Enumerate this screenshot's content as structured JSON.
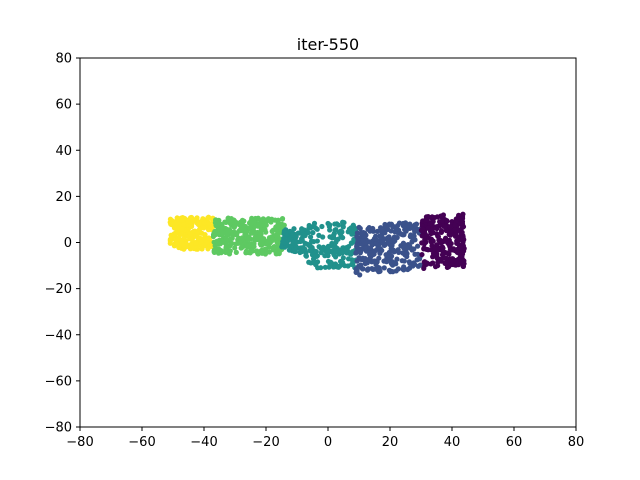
{
  "chart_data": {
    "type": "scatter",
    "title": "iter-550",
    "xlabel": "",
    "ylabel": "",
    "xlim": [
      -80,
      80
    ],
    "ylim": [
      -80,
      80
    ],
    "xticks": [
      -80,
      -60,
      -40,
      -20,
      0,
      20,
      40,
      60,
      80
    ],
    "yticks": [
      -80,
      -60,
      -40,
      -20,
      0,
      20,
      40,
      60,
      80
    ],
    "grid": false,
    "legend": "none",
    "clusters": [
      {
        "color": "#fde725",
        "x_range": [
          -51,
          -37
        ],
        "y_range": [
          -3,
          11
        ],
        "count": 230,
        "tilt": 0
      },
      {
        "color": "#5ec962",
        "x_range": [
          -37,
          -14
        ],
        "y_range": [
          -5,
          11
        ],
        "count": 320,
        "tilt": 0
      },
      {
        "color": "#21918c",
        "x_range": [
          -15,
          9
        ],
        "y_range": [
          -13,
          12
        ],
        "count": 240,
        "tilt": 0,
        "shape": "neck"
      },
      {
        "color": "#3b528b",
        "x_range": [
          9,
          30
        ],
        "y_range": [
          -13,
          8
        ],
        "count": 260,
        "tilt": 0.12
      },
      {
        "color": "#440154",
        "x_range": [
          30,
          44
        ],
        "y_range": [
          -11,
          12
        ],
        "count": 240,
        "tilt": 0.08
      }
    ]
  }
}
